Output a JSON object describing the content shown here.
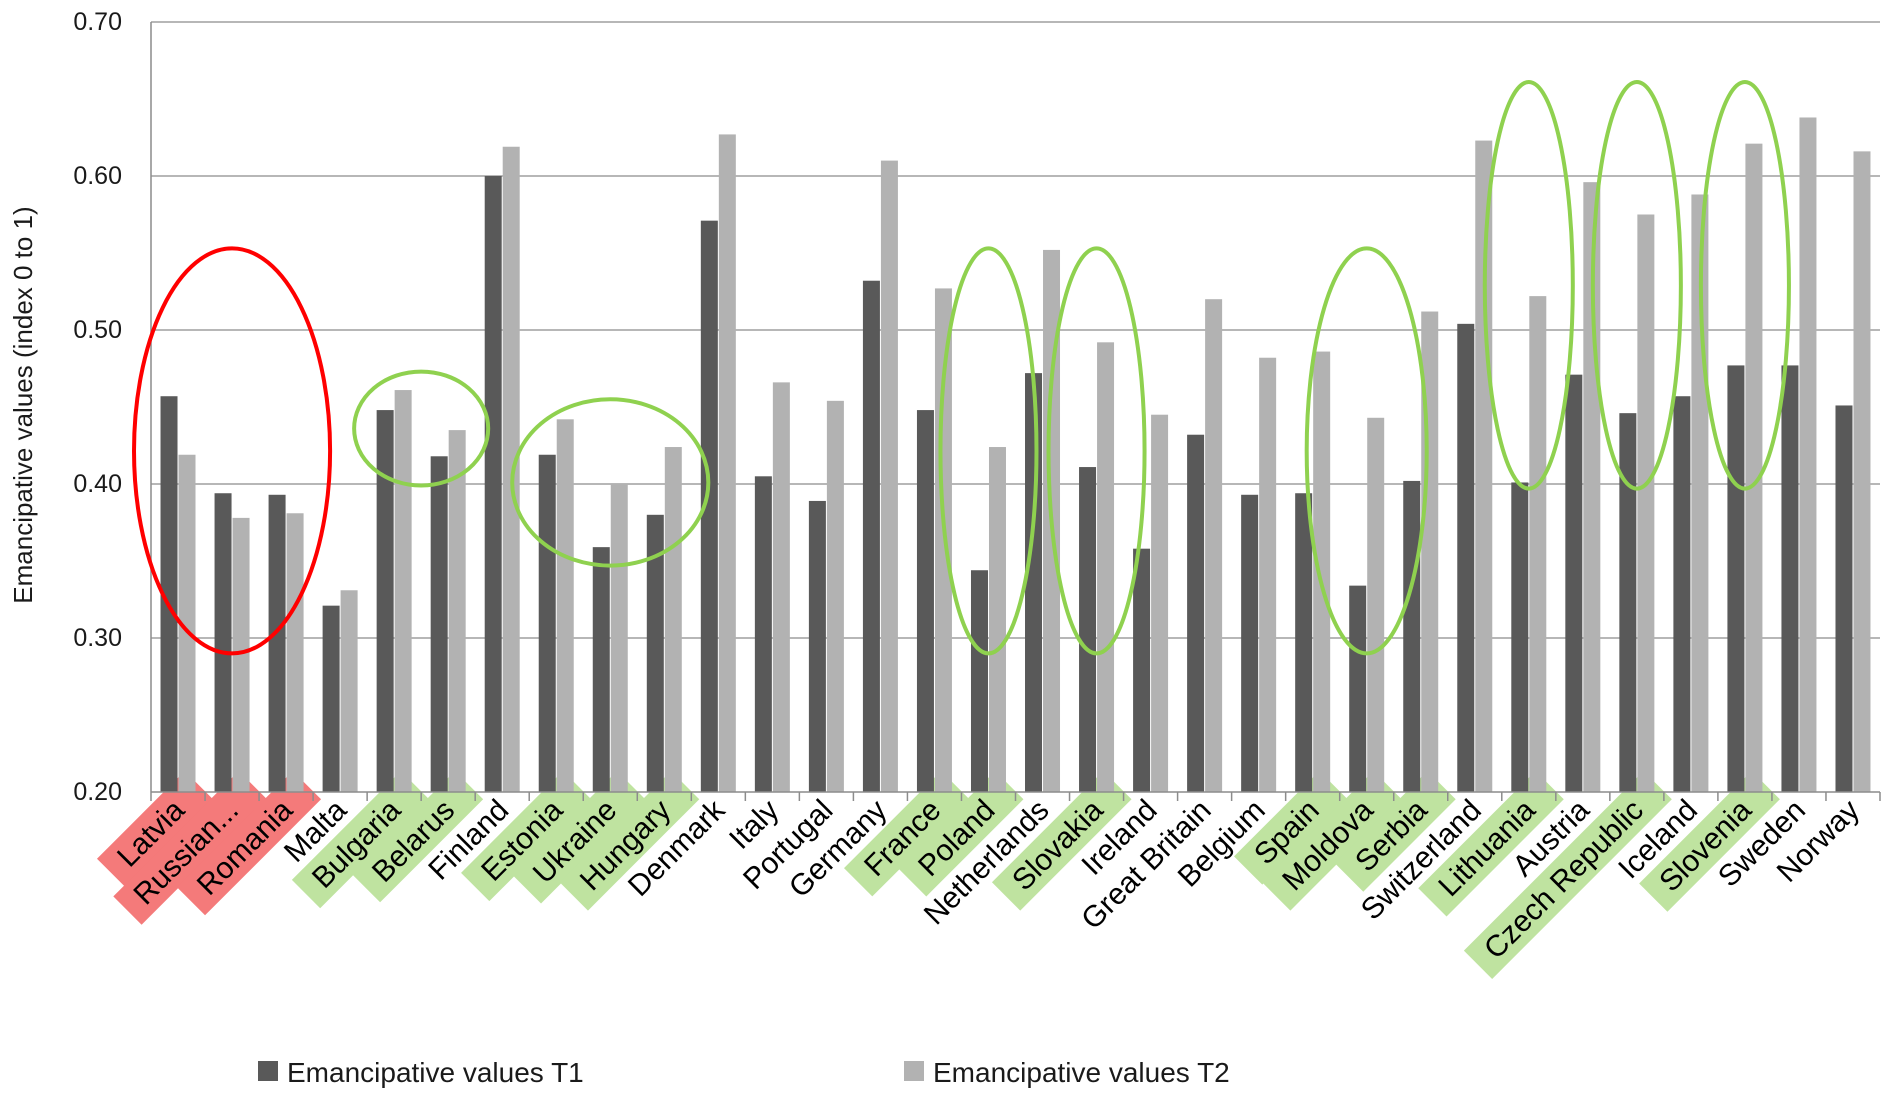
{
  "chart_data": {
    "type": "bar",
    "title": "",
    "xlabel": "",
    "ylabel": "Emancipative values (index 0 to 1)",
    "ylim": [
      0.2,
      0.7
    ],
    "yticks": [
      "0.20",
      "0.30",
      "0.40",
      "0.50",
      "0.60",
      "0.70"
    ],
    "grid": true,
    "legend_position": "bottom",
    "categories": [
      "Latvia",
      "Russian...",
      "Romania",
      "Malta",
      "Bulgaria",
      "Belarus",
      "Finland",
      "Estonia",
      "Ukraine",
      "Hungary",
      "Denmark",
      "Italy",
      "Portugal",
      "Germany",
      "France",
      "Poland",
      "Netherlands",
      "Slovakia",
      "Ireland",
      "Great Britain",
      "Belgium",
      "Spain",
      "Moldova",
      "Serbia",
      "Switzerland",
      "Lithuania",
      "Austria",
      "Czech Republic",
      "Iceland",
      "Slovenia",
      "Sweden",
      "Norway"
    ],
    "series": [
      {
        "name": "Emancipative values T1",
        "color": "#595959",
        "values": [
          0.457,
          0.394,
          0.393,
          0.321,
          0.448,
          0.418,
          0.6,
          0.419,
          0.359,
          0.38,
          0.571,
          0.405,
          0.389,
          0.532,
          0.448,
          0.344,
          0.472,
          0.411,
          0.358,
          0.432,
          0.393,
          0.394,
          0.334,
          0.402,
          0.504,
          0.401,
          0.471,
          0.446,
          0.457,
          0.477,
          0.477,
          0.451
        ]
      },
      {
        "name": "Emancipative values T2",
        "color": "#b2b2b2",
        "values": [
          0.419,
          0.378,
          0.381,
          0.331,
          0.461,
          0.435,
          0.619,
          0.442,
          0.4,
          0.424,
          0.627,
          0.466,
          0.454,
          0.61,
          0.527,
          0.424,
          0.552,
          0.492,
          0.445,
          0.52,
          0.482,
          0.486,
          0.443,
          0.512,
          0.623,
          0.522,
          0.596,
          0.575,
          0.588,
          0.621,
          0.638,
          0.616
        ]
      }
    ],
    "label_highlights": {
      "red": [
        "Latvia",
        "Russian...",
        "Romania"
      ],
      "green": [
        "Bulgaria",
        "Belarus",
        "Estonia",
        "Ukraine",
        "Hungary",
        "France",
        "Poland",
        "Slovakia",
        "Spain",
        "Moldova",
        "Serbia",
        "Lithuania",
        "Czech Republic",
        "Slovenia"
      ]
    },
    "annotation_colors": {
      "red": "#ff0000",
      "green": "#8fd14f",
      "red_fill": "#f47a7a",
      "green_fill": "#bfe3a0"
    }
  }
}
